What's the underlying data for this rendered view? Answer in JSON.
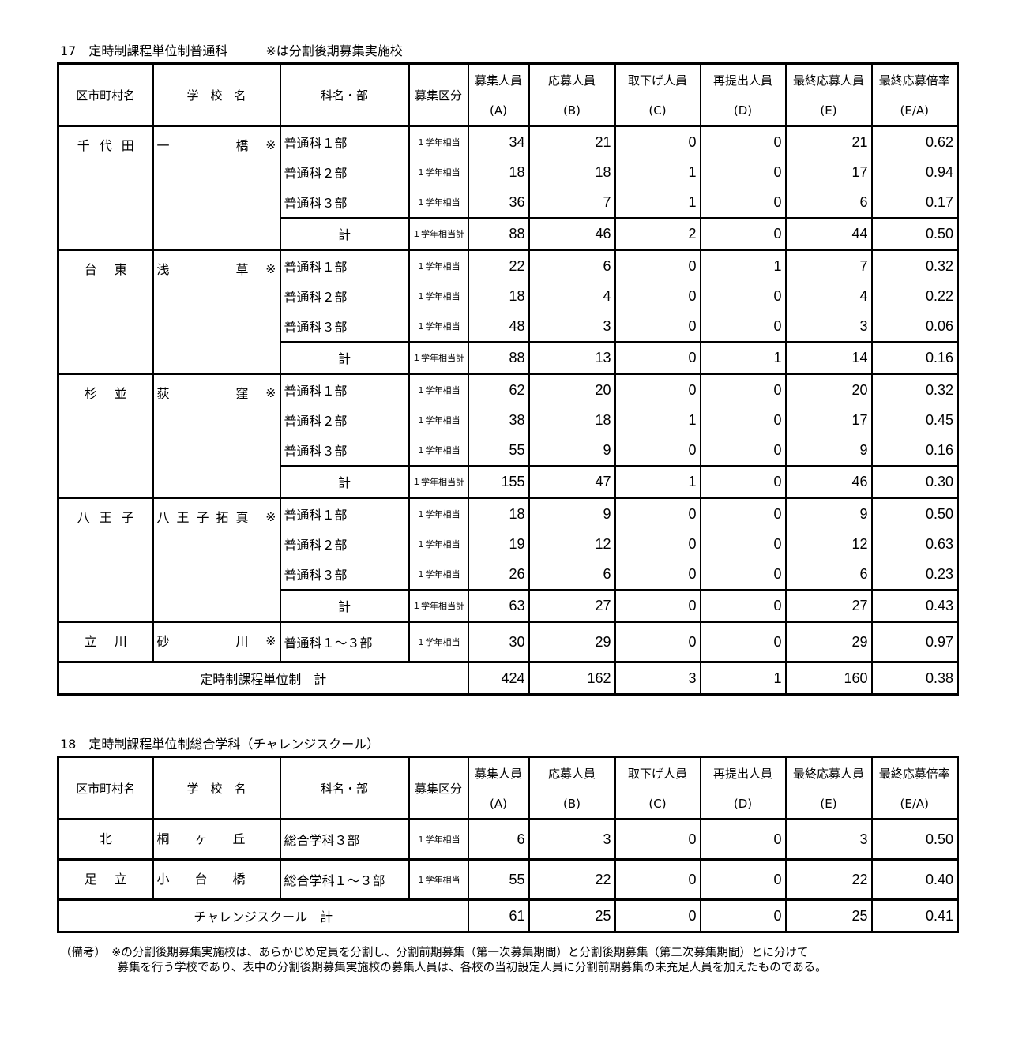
{
  "section17": {
    "title": "17　定時制課程単位制普通科",
    "note": "※は分割後期募集実施校",
    "headers": [
      {
        "l1": "区市町村名"
      },
      {
        "l1": "学　校　名"
      },
      {
        "l1": "科名・部"
      },
      {
        "l1": "募集区分"
      },
      {
        "l1": "募集人員",
        "l2": "(A)"
      },
      {
        "l1": "応募人員",
        "l2": "(B)"
      },
      {
        "l1": "取下げ人員",
        "l2": "(C)"
      },
      {
        "l1": "再提出人員",
        "l2": "(D)"
      },
      {
        "l1": "最終応募人員",
        "l2": "(E)"
      },
      {
        "l1": "最終応募倍率",
        "l2": "(E/A)"
      }
    ],
    "groups": [
      {
        "district": "千代田",
        "school": "一橋",
        "mark": "※",
        "rows": [
          {
            "course": "普通科１部",
            "kubun": "１学年相当",
            "a": "34",
            "b": "21",
            "c": "0",
            "d": "0",
            "e": "21",
            "r": "0.62"
          },
          {
            "course": "普通科２部",
            "kubun": "１学年相当",
            "a": "18",
            "b": "18",
            "c": "1",
            "d": "0",
            "e": "17",
            "r": "0.94"
          },
          {
            "course": "普通科３部",
            "kubun": "１学年相当",
            "a": "36",
            "b": "7",
            "c": "1",
            "d": "0",
            "e": "6",
            "r": "0.17"
          },
          {
            "course": "計",
            "kubun": "１学年相当計",
            "a": "88",
            "b": "46",
            "c": "2",
            "d": "0",
            "e": "44",
            "r": "0.50",
            "subtotal": true
          }
        ]
      },
      {
        "district": "台東",
        "school": "浅草",
        "mark": "※",
        "rows": [
          {
            "course": "普通科１部",
            "kubun": "１学年相当",
            "a": "22",
            "b": "6",
            "c": "0",
            "d": "1",
            "e": "7",
            "r": "0.32"
          },
          {
            "course": "普通科２部",
            "kubun": "１学年相当",
            "a": "18",
            "b": "4",
            "c": "0",
            "d": "0",
            "e": "4",
            "r": "0.22"
          },
          {
            "course": "普通科３部",
            "kubun": "１学年相当",
            "a": "48",
            "b": "3",
            "c": "0",
            "d": "0",
            "e": "3",
            "r": "0.06"
          },
          {
            "course": "計",
            "kubun": "１学年相当計",
            "a": "88",
            "b": "13",
            "c": "0",
            "d": "1",
            "e": "14",
            "r": "0.16",
            "subtotal": true
          }
        ]
      },
      {
        "district": "杉並",
        "school": "荻窪",
        "mark": "※",
        "rows": [
          {
            "course": "普通科１部",
            "kubun": "１学年相当",
            "a": "62",
            "b": "20",
            "c": "0",
            "d": "0",
            "e": "20",
            "r": "0.32"
          },
          {
            "course": "普通科２部",
            "kubun": "１学年相当",
            "a": "38",
            "b": "18",
            "c": "1",
            "d": "0",
            "e": "17",
            "r": "0.45"
          },
          {
            "course": "普通科３部",
            "kubun": "１学年相当",
            "a": "55",
            "b": "9",
            "c": "0",
            "d": "0",
            "e": "9",
            "r": "0.16"
          },
          {
            "course": "計",
            "kubun": "１学年相当計",
            "a": "155",
            "b": "47",
            "c": "1",
            "d": "0",
            "e": "46",
            "r": "0.30",
            "subtotal": true
          }
        ]
      },
      {
        "district": "八王子",
        "school": "八王子拓真",
        "mark": "※",
        "rows": [
          {
            "course": "普通科１部",
            "kubun": "１学年相当",
            "a": "18",
            "b": "9",
            "c": "0",
            "d": "0",
            "e": "9",
            "r": "0.50"
          },
          {
            "course": "普通科２部",
            "kubun": "１学年相当",
            "a": "19",
            "b": "12",
            "c": "0",
            "d": "0",
            "e": "12",
            "r": "0.63"
          },
          {
            "course": "普通科３部",
            "kubun": "１学年相当",
            "a": "26",
            "b": "6",
            "c": "0",
            "d": "0",
            "e": "6",
            "r": "0.23"
          },
          {
            "course": "計",
            "kubun": "１学年相当計",
            "a": "63",
            "b": "27",
            "c": "0",
            "d": "0",
            "e": "27",
            "r": "0.43",
            "subtotal": true
          }
        ]
      },
      {
        "district": "立川",
        "school": "砂川",
        "mark": "※",
        "rows": [
          {
            "course": "普通科１～３部",
            "kubun": "１学年相当",
            "a": "30",
            "b": "29",
            "c": "0",
            "d": "0",
            "e": "29",
            "r": "0.97"
          }
        ]
      }
    ],
    "total": {
      "label": "定時制課程単位制　計",
      "a": "424",
      "b": "162",
      "c": "3",
      "d": "1",
      "e": "160",
      "r": "0.38"
    }
  },
  "section18": {
    "title": "18　定時制課程単位制総合学科（チャレンジスクール）",
    "groups": [
      {
        "district": "北",
        "school": "桐ヶ丘",
        "mark": "",
        "rows": [
          {
            "course": "総合学科３部",
            "kubun": "１学年相当",
            "a": "6",
            "b": "3",
            "c": "0",
            "d": "0",
            "e": "3",
            "r": "0.50"
          }
        ]
      },
      {
        "district": "足立",
        "school": "小台橋",
        "mark": "",
        "rows": [
          {
            "course": "総合学科１～３部",
            "kubun": "１学年相当",
            "a": "55",
            "b": "22",
            "c": "0",
            "d": "0",
            "e": "22",
            "r": "0.40"
          }
        ]
      }
    ],
    "total": {
      "label": "チャレンジスクール　計",
      "a": "61",
      "b": "25",
      "c": "0",
      "d": "0",
      "e": "25",
      "r": "0.41"
    }
  },
  "remarks": "（備考）　※の分割後期募集実施校は、あらかじめ定員を分割し、分割前期募集（第一次募集期間）と分割後期募集（第二次募集期間）とに分けて\n　　　　　募集を行う学校であり、表中の分割後期募集実施校の募集人員は、各校の当初設定人員に分割前期募集の未充足人員を加えたものである。"
}
